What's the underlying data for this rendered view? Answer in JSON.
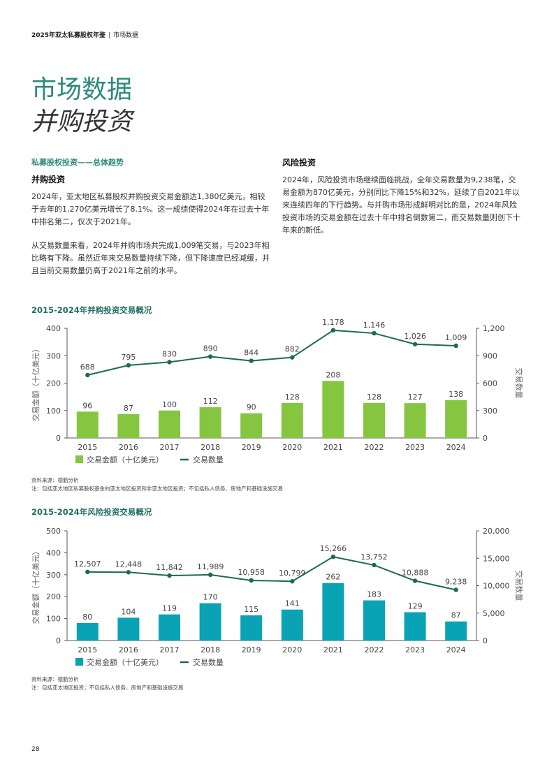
{
  "header": {
    "book": "2025年亚太私募股权年鉴",
    "section": "市场数据"
  },
  "title": {
    "main": "市场数据",
    "sub": "并购投资"
  },
  "left": {
    "tag": "私募股权投资——总体趋势",
    "heading": "并购投资",
    "p1": "2024年，亚太地区私募股权并购投资交易金额达1,380亿美元，相较于去年的1,270亿美元增长了8.1%。这一成绩使得2024年在过去十年中排名第二，仅次于2021年。",
    "p2": "从交易数量来看，2024年并购市场共完成1,009笔交易，与2023年相比略有下降。虽然近年来交易数量持续下降，但下降速度已经减缓，并且当前交易数量仍高于2021年之前的水平。"
  },
  "right": {
    "heading": "风险投资",
    "p1": "2024年，风险投资市场继续面临挑战，全年交易数量为9,238笔，交易金额为870亿美元，分别同比下降15%和32%，延续了自2021年以来连续四年的下行趋势。与并购市场形成鲜明对比的是，2024年风险投资市场的交易金额在过去十年中排名倒数第二，而交易数量则创下十年来的新低。"
  },
  "chart_data": [
    {
      "type": "bar+line",
      "title": "2015-2024年并购投资交易概况",
      "categories": [
        "2015",
        "2016",
        "2017",
        "2018",
        "2019",
        "2020",
        "2021",
        "2022",
        "2023",
        "2024"
      ],
      "series": [
        {
          "name": "交易金额（十亿美元）",
          "kind": "bar",
          "axis": "left",
          "values": [
            96,
            87,
            100,
            112,
            90,
            128,
            208,
            128,
            127,
            138
          ]
        },
        {
          "name": "交易数量",
          "kind": "line",
          "axis": "right",
          "values": [
            688,
            795,
            830,
            890,
            844,
            882,
            1178,
            1146,
            1026,
            1009
          ]
        }
      ],
      "ylabel": "交易金额（十亿美元）",
      "y2label": "交易数量",
      "ylim": [
        0,
        400
      ],
      "yticks": [
        "0",
        "100",
        "200",
        "300",
        "400"
      ],
      "y2lim": [
        0,
        1200
      ],
      "y2ticks": [
        "0",
        "300",
        "600",
        "900",
        "1,200"
      ],
      "bar_labels": [
        "96",
        "87",
        "100",
        "112",
        "90",
        "128",
        "208",
        "128",
        "127",
        "138"
      ],
      "line_labels": [
        "688",
        "795",
        "830",
        "890",
        "844",
        "882",
        "1,178",
        "1,146",
        "1,026",
        "1,009"
      ],
      "bar_color": "#86c540",
      "line_color": "#1b6b52",
      "legend": "bottom-left",
      "source": "资料来源：德勤分析",
      "note": "注：包括亚太地区私募股权基金的亚太地区投资和非亚太地区投资；不包括私人债务、房地产和基础设施交易"
    },
    {
      "type": "bar+line",
      "title": "2015-2024年风险投资交易概况",
      "categories": [
        "2015",
        "2016",
        "2017",
        "2018",
        "2019",
        "2020",
        "2021",
        "2022",
        "2023",
        "2024"
      ],
      "series": [
        {
          "name": "交易金额（十亿美元）",
          "kind": "bar",
          "axis": "left",
          "values": [
            80,
            104,
            119,
            170,
            115,
            141,
            262,
            183,
            129,
            87
          ]
        },
        {
          "name": "交易数量",
          "kind": "line",
          "axis": "right",
          "values": [
            12507,
            12448,
            11842,
            11989,
            10958,
            10799,
            15266,
            13752,
            10888,
            9238
          ]
        }
      ],
      "ylabel": "交易金额（十亿美元）",
      "y2label": "交易数量",
      "ylim": [
        0,
        500
      ],
      "yticks": [
        "0",
        "100",
        "200",
        "300",
        "400",
        "500"
      ],
      "y2lim": [
        0,
        20000
      ],
      "y2ticks": [
        "0",
        "5,000",
        "10,000",
        "15,000",
        "20,000"
      ],
      "bar_labels": [
        "80",
        "104",
        "119",
        "170",
        "115",
        "141",
        "262",
        "183",
        "129",
        "87"
      ],
      "line_labels": [
        "12,507",
        "12,448",
        "11,842",
        "11,989",
        "10,958",
        "10,799",
        "15,266",
        "13,752",
        "10,888",
        "9,238"
      ],
      "bar_color": "#0aa2b5",
      "line_color": "#1b6b52",
      "legend": "bottom-left",
      "source": "资料来源：德勤分析",
      "note": "注：包括亚太地区投资；不包括私人债务、房地产和基础设施交易"
    }
  ],
  "page_number": "28"
}
